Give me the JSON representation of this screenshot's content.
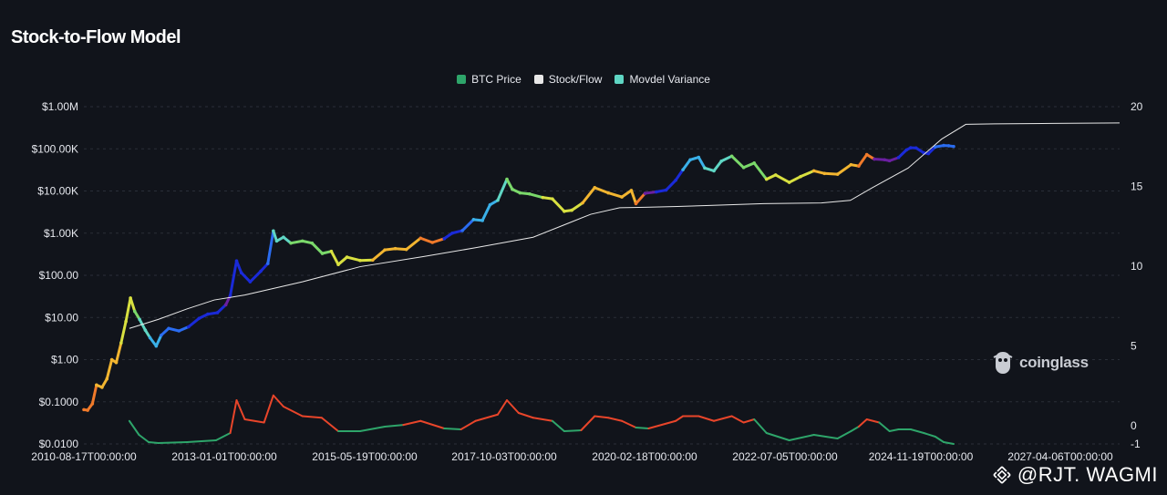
{
  "title": "Stock-to-Flow Model",
  "legend": [
    {
      "label": "BTC Price",
      "color": "#2ea56a"
    },
    {
      "label": "Stock/Flow",
      "color": "#e8e8e8"
    },
    {
      "label": "Movdel Variance",
      "color": "#5fd6c4"
    }
  ],
  "watermark": "coinglass",
  "credit": "@RJT. WAGMI",
  "colors": {
    "background": "#11141b",
    "grid": "#2a2e38",
    "sf_line": "#e8e8e8"
  },
  "chart_data": {
    "type": "line",
    "title": "Stock-to-Flow Model",
    "x_tick_labels": [
      "2010-08-17T00:00:00",
      "2013-01-01T00:00:00",
      "2015-05-19T00:00:00",
      "2017-10-03T00:00:00",
      "2020-02-18T00:00:00",
      "2022-07-05T00:00:00",
      "2024-11-19T00:00:00",
      "2027-04-06T00:00:00"
    ],
    "xlim": [
      "2010-08-17",
      "2028-08-01"
    ],
    "y_left_tick_labels": [
      "$0.0100",
      "$0.1000",
      "$1.00",
      "$10.00",
      "$100.00",
      "$1.00K",
      "$10.00K",
      "$100.00K",
      "$1.00M"
    ],
    "y_left_scale": "log",
    "y_left_lim": [
      0.01,
      1000000
    ],
    "y_right_tick_labels": [
      "-1",
      "0",
      "5",
      "10",
      "15",
      "20"
    ],
    "y_right_lim": [
      -1,
      20
    ],
    "grid": "horizontal dashed",
    "legend_position": "top-center",
    "series": [
      {
        "name": "BTC Price",
        "axis": "left",
        "color_scale": "rainbow by model variance",
        "points": [
          [
            "2010-08-17",
            0.065,
            0.9
          ],
          [
            "2010-09-10",
            0.063,
            0.9
          ],
          [
            "2010-10-10",
            0.09,
            0.85
          ],
          [
            "2010-11-05",
            0.25,
            0.8
          ],
          [
            "2010-12-10",
            0.22,
            0.8
          ],
          [
            "2011-01-10",
            0.35,
            0.78
          ],
          [
            "2011-02-10",
            1.0,
            0.75
          ],
          [
            "2011-03-10",
            0.85,
            0.74
          ],
          [
            "2011-04-10",
            2.5,
            0.72
          ],
          [
            "2011-05-10",
            8.0,
            0.68
          ],
          [
            "2011-06-08",
            29.0,
            0.62
          ],
          [
            "2011-07-05",
            14.0,
            0.55
          ],
          [
            "2011-08-05",
            9.0,
            0.48
          ],
          [
            "2011-09-10",
            5.0,
            0.42
          ],
          [
            "2011-10-10",
            3.3,
            0.35
          ],
          [
            "2011-11-18",
            2.1,
            0.28
          ],
          [
            "2011-12-20",
            3.8,
            0.24
          ],
          [
            "2012-02-05",
            5.5,
            0.22
          ],
          [
            "2012-04-10",
            4.8,
            0.17
          ],
          [
            "2012-06-10",
            6.0,
            0.14
          ],
          [
            "2012-08-15",
            9.5,
            0.12
          ],
          [
            "2012-10-10",
            12.0,
            0.1
          ],
          [
            "2012-12-10",
            13.0,
            0.07
          ],
          [
            "2013-02-01",
            20.0,
            0.05
          ],
          [
            "2013-03-01",
            33.0,
            0.06
          ],
          [
            "2013-04-10",
            220.0,
            0.15
          ],
          [
            "2013-05-10",
            115.0,
            0.16
          ],
          [
            "2013-07-05",
            70.0,
            0.14
          ],
          [
            "2013-09-10",
            125.0,
            0.16
          ],
          [
            "2013-10-25",
            190.0,
            0.18
          ],
          [
            "2013-11-29",
            1130.0,
            0.42
          ],
          [
            "2013-12-20",
            650.0,
            0.45
          ],
          [
            "2014-02-01",
            800.0,
            0.47
          ],
          [
            "2014-03-20",
            580.0,
            0.5
          ],
          [
            "2014-06-01",
            650.0,
            0.52
          ],
          [
            "2014-08-01",
            580.0,
            0.55
          ],
          [
            "2014-10-05",
            330.0,
            0.6
          ],
          [
            "2014-12-01",
            370.0,
            0.63
          ],
          [
            "2015-01-14",
            180.0,
            0.68
          ],
          [
            "2015-03-10",
            270.0,
            0.7
          ],
          [
            "2015-06-01",
            225.0,
            0.72
          ],
          [
            "2015-08-20",
            230.0,
            0.74
          ],
          [
            "2015-11-05",
            400.0,
            0.8
          ],
          [
            "2016-01-10",
            430.0,
            0.79
          ],
          [
            "2016-03-20",
            410.0,
            0.79
          ],
          [
            "2016-06-18",
            760.0,
            0.88
          ],
          [
            "2016-09-01",
            600.0,
            0.88
          ],
          [
            "2016-11-15",
            740.0,
            0.1
          ],
          [
            "2017-01-05",
            1000.0,
            0.15
          ],
          [
            "2017-03-10",
            1150.0,
            0.2
          ],
          [
            "2017-05-20",
            2100.0,
            0.28
          ],
          [
            "2017-07-15",
            2000.0,
            0.3
          ],
          [
            "2017-09-01",
            4700.0,
            0.38
          ],
          [
            "2017-10-20",
            6000.0,
            0.43
          ],
          [
            "2017-12-17",
            19000.0,
            0.5
          ],
          [
            "2018-01-20",
            11000.0,
            0.55
          ],
          [
            "2018-03-10",
            9000.0,
            0.58
          ],
          [
            "2018-05-10",
            8500.0,
            0.6
          ],
          [
            "2018-08-01",
            7000.0,
            0.62
          ],
          [
            "2018-10-01",
            6500.0,
            0.64
          ],
          [
            "2018-12-15",
            3300.0,
            0.7
          ],
          [
            "2019-02-01",
            3500.0,
            0.72
          ],
          [
            "2019-04-10",
            5200.0,
            0.75
          ],
          [
            "2019-06-26",
            12000.0,
            0.77
          ],
          [
            "2019-09-20",
            9000.0,
            0.78
          ],
          [
            "2019-12-15",
            7200.0,
            0.8
          ],
          [
            "2020-02-13",
            10300.0,
            0.82
          ],
          [
            "2020-03-13",
            5000.0,
            0.9
          ],
          [
            "2020-05-10",
            8800.0,
            0.03
          ],
          [
            "2020-07-20",
            9500.0,
            0.08
          ],
          [
            "2020-09-20",
            10500.0,
            0.1
          ],
          [
            "2020-11-20",
            18000.0,
            0.15
          ],
          [
            "2021-01-05",
            32000.0,
            0.3
          ],
          [
            "2021-02-20",
            55000.0,
            0.36
          ],
          [
            "2021-04-14",
            63000.0,
            0.38
          ],
          [
            "2021-05-23",
            35000.0,
            0.43
          ],
          [
            "2021-07-20",
            30000.0,
            0.46
          ],
          [
            "2021-09-05",
            51000.0,
            0.48
          ],
          [
            "2021-11-10",
            67000.0,
            0.5
          ],
          [
            "2022-01-24",
            36000.0,
            0.54
          ],
          [
            "2022-04-01",
            46000.0,
            0.56
          ],
          [
            "2022-06-18",
            19000.0,
            0.62
          ],
          [
            "2022-08-15",
            24000.0,
            0.64
          ],
          [
            "2022-11-09",
            16000.0,
            0.68
          ],
          [
            "2023-01-20",
            22000.0,
            0.7
          ],
          [
            "2023-04-14",
            30000.0,
            0.74
          ],
          [
            "2023-06-20",
            26000.0,
            0.74
          ],
          [
            "2023-09-11",
            25000.0,
            0.76
          ],
          [
            "2023-12-05",
            42000.0,
            0.82
          ],
          [
            "2024-01-23",
            39000.0,
            0.85
          ],
          [
            "2024-03-14",
            73000.0,
            0.92
          ],
          [
            "2024-05-01",
            57000.0,
            0.04
          ],
          [
            "2024-07-05",
            55000.0,
            0.04
          ],
          [
            "2024-08-05",
            52000.0,
            0.05
          ],
          [
            "2024-10-01",
            62000.0,
            0.06
          ],
          [
            "2024-11-20",
            94000.0,
            0.1
          ],
          [
            "2024-12-17",
            106000.0,
            0.14
          ],
          [
            "2025-01-20",
            105000.0,
            0.16
          ],
          [
            "2025-03-10",
            80000.0,
            0.15
          ],
          [
            "2025-04-08",
            77000.0,
            0.12
          ],
          [
            "2025-05-22",
            111000.0,
            0.18
          ],
          [
            "2025-07-14",
            120000.0,
            0.2
          ],
          [
            "2025-08-15",
            118000.0,
            0.2
          ],
          [
            "2025-09-15",
            114000.0,
            0.19
          ]
        ]
      },
      {
        "name": "Stock/Flow",
        "axis": "left",
        "points": [
          [
            "2011-06-01",
            5.5
          ],
          [
            "2011-12-01",
            9.0
          ],
          [
            "2012-06-01",
            16.0
          ],
          [
            "2012-11-20",
            26.0
          ],
          [
            "2013-06-01",
            34.0
          ],
          [
            "2014-06-01",
            70.0
          ],
          [
            "2015-06-01",
            160.0
          ],
          [
            "2016-07-09",
            280.0
          ],
          [
            "2017-06-01",
            450.0
          ],
          [
            "2018-06-01",
            800.0
          ],
          [
            "2018-12-01",
            1500.0
          ],
          [
            "2019-06-01",
            2800.0
          ],
          [
            "2019-12-01",
            4000.0
          ],
          [
            "2020-05-11",
            4100.0
          ],
          [
            "2020-12-01",
            4300.0
          ],
          [
            "2021-06-01",
            4500.0
          ],
          [
            "2022-06-01",
            5000.0
          ],
          [
            "2023-06-01",
            5200.0
          ],
          [
            "2023-12-01",
            6000.0
          ],
          [
            "2024-04-19",
            12000.0
          ],
          [
            "2024-12-01",
            35000.0
          ],
          [
            "2025-07-01",
            170000.0
          ],
          [
            "2025-12-01",
            380000.0
          ],
          [
            "2026-06-01",
            390000.0
          ],
          [
            "2027-06-01",
            400000.0
          ],
          [
            "2028-08-01",
            410000.0
          ]
        ]
      },
      {
        "name": "Movdel Variance",
        "axis": "right",
        "points": [
          [
            "2011-06-01",
            0.3
          ],
          [
            "2011-08-01",
            -0.5
          ],
          [
            "2011-10-01",
            -0.9
          ],
          [
            "2011-12-01",
            -0.95
          ],
          [
            "2012-06-01",
            -0.9
          ],
          [
            "2012-12-01",
            -0.8
          ],
          [
            "2013-03-01",
            -0.4
          ],
          [
            "2013-04-10",
            1.6
          ],
          [
            "2013-06-01",
            0.4
          ],
          [
            "2013-10-01",
            0.2
          ],
          [
            "2013-11-29",
            1.9
          ],
          [
            "2014-02-01",
            1.2
          ],
          [
            "2014-06-01",
            0.6
          ],
          [
            "2014-10-01",
            0.5
          ],
          [
            "2015-01-14",
            -0.3
          ],
          [
            "2015-06-01",
            -0.3
          ],
          [
            "2015-11-05",
            -0.05
          ],
          [
            "2016-03-01",
            0.05
          ],
          [
            "2016-06-18",
            0.3
          ],
          [
            "2016-11-15",
            -0.15
          ],
          [
            "2017-03-01",
            -0.2
          ],
          [
            "2017-06-01",
            0.3
          ],
          [
            "2017-10-20",
            0.7
          ],
          [
            "2017-12-17",
            1.6
          ],
          [
            "2018-03-01",
            0.8
          ],
          [
            "2018-06-01",
            0.5
          ],
          [
            "2018-10-01",
            0.3
          ],
          [
            "2018-12-15",
            -0.3
          ],
          [
            "2019-04-01",
            -0.25
          ],
          [
            "2019-06-26",
            0.6
          ],
          [
            "2019-09-20",
            0.5
          ],
          [
            "2019-12-15",
            0.3
          ],
          [
            "2020-03-13",
            -0.1
          ],
          [
            "2020-06-01",
            -0.15
          ],
          [
            "2020-11-20",
            0.3
          ],
          [
            "2021-01-05",
            0.6
          ],
          [
            "2021-04-14",
            0.6
          ],
          [
            "2021-07-20",
            0.3
          ],
          [
            "2021-11-10",
            0.6
          ],
          [
            "2022-01-24",
            0.2
          ],
          [
            "2022-04-01",
            0.4
          ],
          [
            "2022-06-18",
            -0.4
          ],
          [
            "2022-11-09",
            -0.8
          ],
          [
            "2023-04-14",
            -0.5
          ],
          [
            "2023-09-11",
            -0.7
          ],
          [
            "2023-12-05",
            -0.3
          ],
          [
            "2024-01-23",
            -0.05
          ],
          [
            "2024-03-14",
            0.4
          ],
          [
            "2024-06-01",
            0.2
          ],
          [
            "2024-08-05",
            -0.3
          ],
          [
            "2024-10-01",
            -0.2
          ],
          [
            "2024-12-17",
            -0.2
          ],
          [
            "2025-03-10",
            -0.4
          ],
          [
            "2025-05-22",
            -0.6
          ],
          [
            "2025-07-14",
            -0.9
          ],
          [
            "2025-09-15",
            -1.0
          ]
        ]
      }
    ]
  }
}
